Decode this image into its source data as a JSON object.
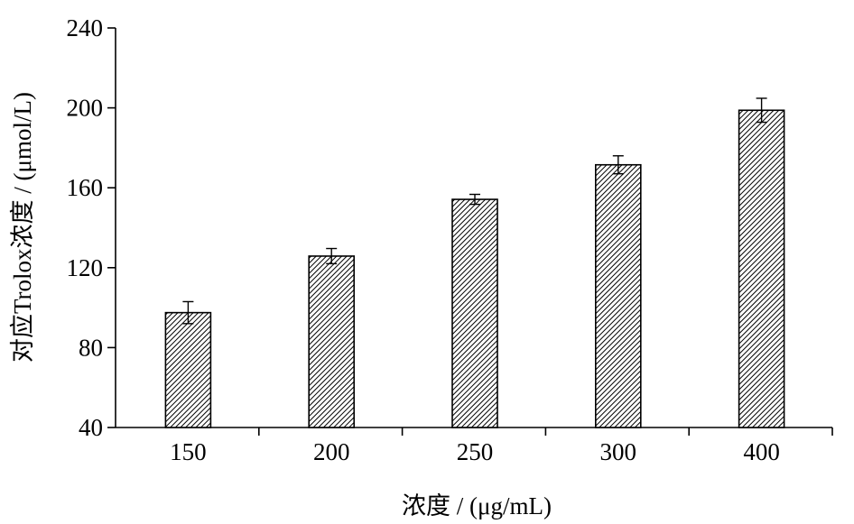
{
  "chart_data": {
    "type": "bar",
    "categories": [
      "150",
      "200",
      "250",
      "300",
      "400"
    ],
    "values": [
      97.5,
      125.8,
      154.2,
      171.5,
      198.8
    ],
    "errors": [
      5.5,
      3.8,
      2.5,
      4.5,
      6.0
    ],
    "xlabel": "浓度 / (μg/mL)",
    "ylabel": "对应Trolox浓度 / (μmol/L)",
    "ylim": [
      40,
      240
    ],
    "yticks": [
      40,
      80,
      120,
      160,
      200,
      240
    ],
    "grid": false,
    "bar_fill": "hatched",
    "colors": {
      "bar_fill": "#ffffff",
      "hatch": "#000000",
      "axis": "#000000"
    }
  }
}
